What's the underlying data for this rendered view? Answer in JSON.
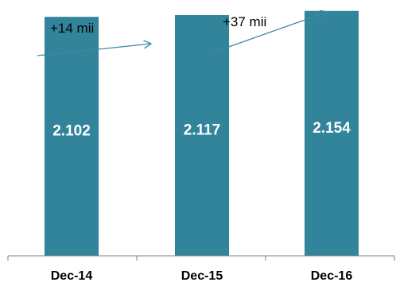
{
  "chart_data": {
    "type": "bar",
    "categories": [
      "Dec-14",
      "Dec-15",
      "Dec-16"
    ],
    "values": [
      2102,
      2117,
      2154
    ],
    "data_labels": [
      "2.102",
      "2.117",
      "2.154"
    ],
    "title": "",
    "xlabel": "",
    "ylabel": "",
    "ylim": [
      0,
      2250
    ],
    "grid": false,
    "legend": "none",
    "annotations": [
      {
        "text": "+14 mii",
        "from": "Dec-14",
        "to": "Dec-15"
      },
      {
        "text": "+37 mii",
        "from": "Dec-15",
        "to": "Dec-16"
      }
    ]
  },
  "colors": {
    "bar": "#32849b",
    "arrow": "#3a8aa0",
    "axis": "#7f7f7f"
  }
}
